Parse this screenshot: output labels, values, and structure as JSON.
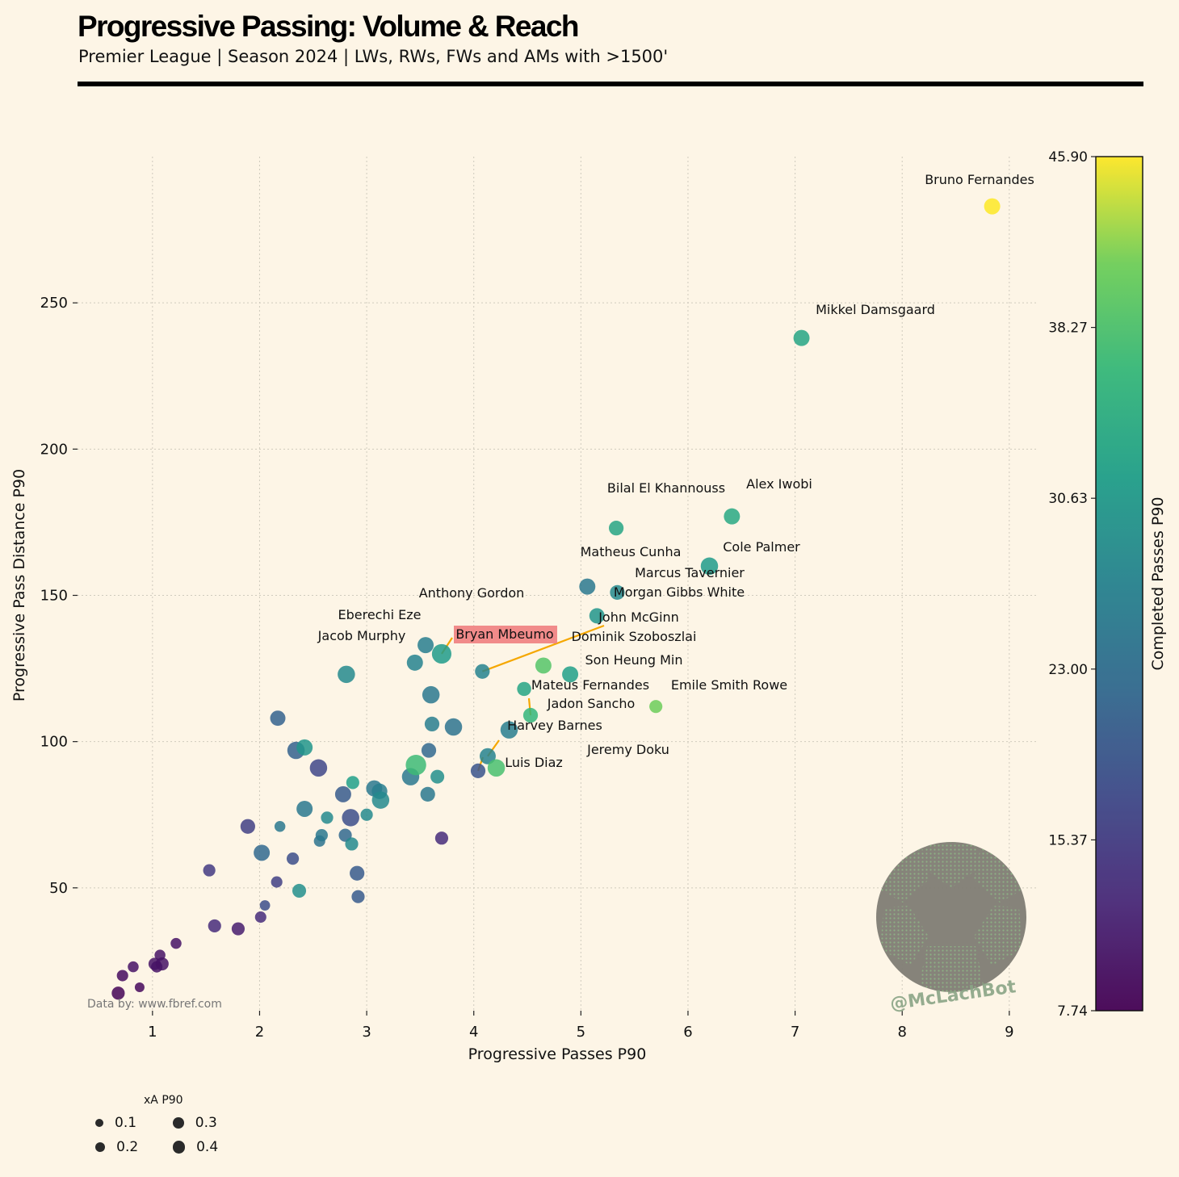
{
  "header": {
    "title": "Progressive Passing: Volume & Reach",
    "subtitle": "Premier League | Season 2024 | LWs, RWs, FWs and AMs with >1500'"
  },
  "credit": "Data by: www.fbref.com",
  "watermark": "@McLachBot",
  "highlight_color": "#f08080",
  "annotation_color": "#f5a700",
  "chart_data": {
    "type": "scatter",
    "xlabel": "Progressive Passes P90",
    "ylabel": "Progressive Pass Distance P90",
    "xlim": [
      0.3,
      9.25
    ],
    "ylim": [
      8,
      300
    ],
    "xticks": [
      1,
      2,
      3,
      4,
      5,
      6,
      7,
      8,
      9
    ],
    "yticks": [
      50,
      100,
      150,
      200,
      250
    ],
    "grid": true,
    "colorbar": {
      "label": "Completed Passes P90",
      "colormap": "viridis",
      "min": 7.74,
      "max": 45.9,
      "ticks": [
        "7.74",
        "15.37",
        "23.00",
        "30.63",
        "38.27",
        "45.90"
      ]
    },
    "size_legend": {
      "title": "xA P90",
      "entries": [
        {
          "label": "0.1",
          "value": 0.1
        },
        {
          "label": "0.2",
          "value": 0.2
        },
        {
          "label": "0.3",
          "value": 0.3
        },
        {
          "label": "0.4",
          "value": 0.4
        }
      ]
    },
    "highlighted_player": "Bryan Mbeumo",
    "points": [
      {
        "name": "Bruno Fernandes",
        "x": 8.84,
        "y": 283,
        "c": 45.9,
        "s": 0.2
      },
      {
        "name": "Mikkel Damsgaard",
        "x": 7.06,
        "y": 238,
        "c": 33.0,
        "s": 0.2
      },
      {
        "name": "Alex Iwobi",
        "x": 6.41,
        "y": 177,
        "c": 33.5,
        "s": 0.2
      },
      {
        "name": "Bilal El Khannouss",
        "x": 5.33,
        "y": 173,
        "c": 33.0,
        "s": 0.15
      },
      {
        "name": "Cole Palmer",
        "x": 6.2,
        "y": 160,
        "c": 31.0,
        "s": 0.25
      },
      {
        "name": "Matheus Cunha",
        "x": 5.06,
        "y": 153,
        "c": 25.0,
        "s": 0.2
      },
      {
        "name": "Marcus Tavernier",
        "x": 5.34,
        "y": 151,
        "c": 28.0,
        "s": 0.15
      },
      {
        "name": "Morgan Gibbs White",
        "x": 5.15,
        "y": 143,
        "c": 30.0,
        "s": 0.17
      },
      {
        "name": "Anthony Gordon",
        "x": 3.55,
        "y": 133,
        "c": 26.0,
        "s": 0.2
      },
      {
        "name": "Bryan Mbeumo",
        "x": 3.7,
        "y": 130,
        "c": 31.0,
        "s": 0.35
      },
      {
        "name": "Eberechi Eze",
        "x": 3.45,
        "y": 127,
        "c": 27.0,
        "s": 0.2
      },
      {
        "name": "Jacob Murphy",
        "x": 2.81,
        "y": 123,
        "c": 28.0,
        "s": 0.25
      },
      {
        "name": "Dominik Szoboszlai",
        "x": 4.65,
        "y": 126,
        "c": 39.0,
        "s": 0.2
      },
      {
        "name": "John McGinn",
        "x": 4.08,
        "y": 124,
        "c": 27.0,
        "s": 0.15
      },
      {
        "name": "Son Heung Min",
        "x": 4.9,
        "y": 123,
        "c": 32.0,
        "s": 0.2
      },
      {
        "name": "",
        "x": 4.47,
        "y": 118,
        "c": 33.0,
        "s": 0.13
      },
      {
        "name": "",
        "x": 3.6,
        "y": 116,
        "c": 25.0,
        "s": 0.25
      },
      {
        "name": "Emile Smith Rowe",
        "x": 5.7,
        "y": 112,
        "c": 41.0,
        "s": 0.1
      },
      {
        "name": "Mateus Fernandes",
        "x": 4.53,
        "y": 109,
        "c": 36.0,
        "s": 0.15
      },
      {
        "name": "",
        "x": 2.17,
        "y": 108,
        "c": 21.0,
        "s": 0.17
      },
      {
        "name": "",
        "x": 3.61,
        "y": 106,
        "c": 26.0,
        "s": 0.15
      },
      {
        "name": "",
        "x": 3.81,
        "y": 105,
        "c": 24.0,
        "s": 0.25
      },
      {
        "name": "Jadon Sancho",
        "x": 4.33,
        "y": 104,
        "c": 26.0,
        "s": 0.25
      },
      {
        "name": "",
        "x": 2.34,
        "y": 97,
        "c": 21.0,
        "s": 0.25
      },
      {
        "name": "",
        "x": 2.42,
        "y": 98,
        "c": 30.0,
        "s": 0.2
      },
      {
        "name": "",
        "x": 3.58,
        "y": 97,
        "c": 22.0,
        "s": 0.15
      },
      {
        "name": "Harvey Barnes",
        "x": 4.13,
        "y": 95,
        "c": 27.0,
        "s": 0.2
      },
      {
        "name": "",
        "x": 3.46,
        "y": 92,
        "c": 37.0,
        "s": 0.4
      },
      {
        "name": "Jeremy Doku",
        "x": 4.21,
        "y": 91,
        "c": 38.0,
        "s": 0.25
      },
      {
        "name": "Luis Diaz",
        "x": 4.04,
        "y": 90,
        "c": 19.0,
        "s": 0.15
      },
      {
        "name": "",
        "x": 2.55,
        "y": 91,
        "c": 17.0,
        "s": 0.25
      },
      {
        "name": "",
        "x": 3.41,
        "y": 88,
        "c": 25.0,
        "s": 0.25
      },
      {
        "name": "",
        "x": 3.66,
        "y": 88,
        "c": 29.0,
        "s": 0.12
      },
      {
        "name": "",
        "x": 2.87,
        "y": 86,
        "c": 32.0,
        "s": 0.1
      },
      {
        "name": "",
        "x": 3.07,
        "y": 84,
        "c": 25.0,
        "s": 0.2
      },
      {
        "name": "",
        "x": 3.12,
        "y": 83,
        "c": 26.0,
        "s": 0.18
      },
      {
        "name": "",
        "x": 2.78,
        "y": 82,
        "c": 20.0,
        "s": 0.2
      },
      {
        "name": "",
        "x": 3.57,
        "y": 82,
        "c": 25.0,
        "s": 0.15
      },
      {
        "name": "",
        "x": 3.13,
        "y": 80,
        "c": 28.0,
        "s": 0.25
      },
      {
        "name": "",
        "x": 2.42,
        "y": 77,
        "c": 25.0,
        "s": 0.2
      },
      {
        "name": "",
        "x": 2.85,
        "y": 74,
        "c": 18.0,
        "s": 0.25
      },
      {
        "name": "",
        "x": 3.0,
        "y": 75,
        "c": 28.0,
        "s": 0.08
      },
      {
        "name": "",
        "x": 2.63,
        "y": 74,
        "c": 28.0,
        "s": 0.08
      },
      {
        "name": "",
        "x": 1.89,
        "y": 71,
        "c": 16.0,
        "s": 0.15
      },
      {
        "name": "",
        "x": 2.19,
        "y": 71,
        "c": 25.0,
        "s": 0.05
      },
      {
        "name": "",
        "x": 2.58,
        "y": 68,
        "c": 25.0,
        "s": 0.08
      },
      {
        "name": "",
        "x": 2.8,
        "y": 68,
        "c": 22.0,
        "s": 0.1
      },
      {
        "name": "",
        "x": 3.7,
        "y": 67,
        "c": 13.0,
        "s": 0.1
      },
      {
        "name": "",
        "x": 2.56,
        "y": 66,
        "c": 24.0,
        "s": 0.06
      },
      {
        "name": "",
        "x": 2.86,
        "y": 65,
        "c": 28.0,
        "s": 0.1
      },
      {
        "name": "",
        "x": 2.02,
        "y": 62,
        "c": 22.0,
        "s": 0.2
      },
      {
        "name": "",
        "x": 2.31,
        "y": 60,
        "c": 18.0,
        "s": 0.08
      },
      {
        "name": "",
        "x": 1.53,
        "y": 56,
        "c": 15.0,
        "s": 0.08
      },
      {
        "name": "",
        "x": 2.91,
        "y": 55,
        "c": 20.0,
        "s": 0.15
      },
      {
        "name": "",
        "x": 2.16,
        "y": 52,
        "c": 16.0,
        "s": 0.06
      },
      {
        "name": "",
        "x": 2.37,
        "y": 49,
        "c": 29.0,
        "s": 0.12
      },
      {
        "name": "",
        "x": 2.92,
        "y": 47,
        "c": 20.0,
        "s": 0.1
      },
      {
        "name": "",
        "x": 2.05,
        "y": 44,
        "c": 18.0,
        "s": 0.04
      },
      {
        "name": "",
        "x": 2.01,
        "y": 40,
        "c": 13.0,
        "s": 0.06
      },
      {
        "name": "",
        "x": 1.58,
        "y": 37,
        "c": 13.0,
        "s": 0.1
      },
      {
        "name": "",
        "x": 1.8,
        "y": 36,
        "c": 11.0,
        "s": 0.1
      },
      {
        "name": "",
        "x": 1.22,
        "y": 31,
        "c": 10.0,
        "s": 0.05
      },
      {
        "name": "",
        "x": 1.07,
        "y": 27,
        "c": 10.0,
        "s": 0.05
      },
      {
        "name": "",
        "x": 1.02,
        "y": 24,
        "c": 10.0,
        "s": 0.08
      },
      {
        "name": "",
        "x": 1.09,
        "y": 24,
        "c": 10.0,
        "s": 0.1
      },
      {
        "name": "",
        "x": 1.04,
        "y": 23,
        "c": 10.0,
        "s": 0.06
      },
      {
        "name": "",
        "x": 0.82,
        "y": 23,
        "c": 10.0,
        "s": 0.05
      },
      {
        "name": "",
        "x": 0.72,
        "y": 20,
        "c": 9.0,
        "s": 0.06
      },
      {
        "name": "",
        "x": 0.88,
        "y": 16,
        "c": 8.5,
        "s": 0.03
      },
      {
        "name": "",
        "x": 0.68,
        "y": 14,
        "c": 8.0,
        "s": 0.1
      }
    ]
  }
}
